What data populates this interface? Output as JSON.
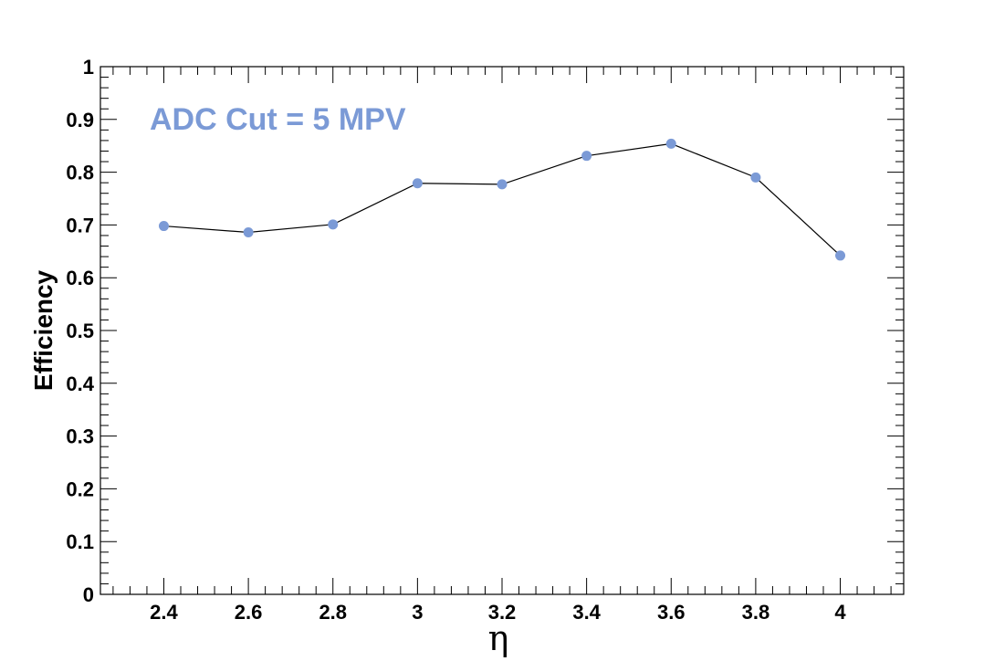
{
  "chart_data": {
    "type": "line",
    "title": "",
    "xlabel": "η",
    "ylabel": "Efficiency",
    "annotation": "ADC Cut = 5 MPV",
    "xlim": [
      2.25,
      4.15
    ],
    "ylim": [
      0,
      1
    ],
    "x_ticks": [
      "2.4",
      "2.6",
      "2.8",
      "3",
      "3.2",
      "3.4",
      "3.6",
      "3.8",
      "4"
    ],
    "y_ticks": [
      "0",
      "0.1",
      "0.2",
      "0.3",
      "0.4",
      "0.5",
      "0.6",
      "0.7",
      "0.8",
      "0.9",
      "1"
    ],
    "grid": false,
    "series": [
      {
        "x": [
          2.4,
          2.6,
          2.8,
          3.0,
          3.2,
          3.4,
          3.6,
          3.8,
          4.0
        ],
        "y": [
          0.698,
          0.686,
          0.701,
          0.779,
          0.777,
          0.831,
          0.854,
          0.79,
          0.642
        ],
        "line_color": "#000000",
        "marker_color": "#7b9ad6"
      }
    ]
  }
}
